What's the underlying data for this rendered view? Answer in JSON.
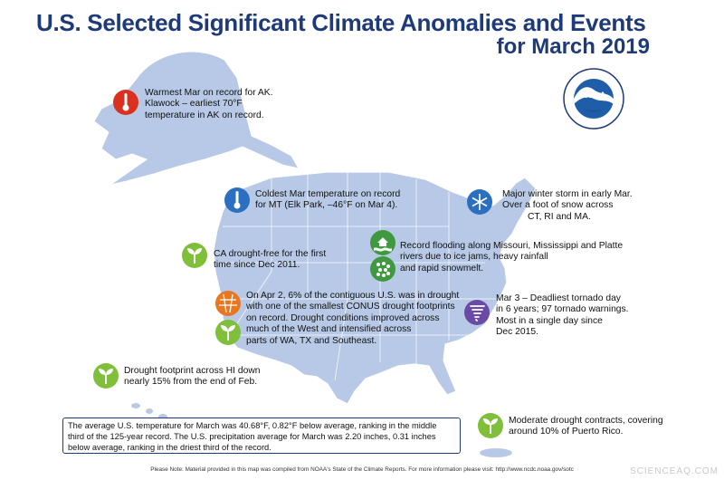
{
  "title": {
    "line1": "U.S. Selected Significant Climate Anomalies and Events",
    "line2": "for March 2019"
  },
  "logo": {
    "name": "NOAA",
    "icon": "noaa-logo-icon"
  },
  "colors": {
    "title": "#1f3a78",
    "land": "#b7c9e6",
    "drought_icon": "#7fbf3a",
    "heat_icon": "#d9301f",
    "cold_icon": "#2a6fc0",
    "tornado_icon": "#6a4aa5",
    "flood_icon": "#3f9a3f"
  },
  "events": {
    "alaska": {
      "line1": "Warmest Mar on record for AK.",
      "line2": "Klawock – earliest 70°F",
      "line3": "temperature in AK on record.",
      "icon": "thermometer-hot-icon"
    },
    "montana": {
      "line1": "Coldest Mar temperature on record",
      "line2": "for MT (Elk Park, –46°F on Mar 4).",
      "icon": "thermometer-cold-icon"
    },
    "winter_storm": {
      "line1": "Major winter storm in early Mar.",
      "line2": "Over a foot of snow across",
      "line3": "CT, RI and MA.",
      "icon": "snowflake-icon"
    },
    "flooding": {
      "line1": "Record flooding along Missouri, Mississippi and Platte",
      "line2": "rivers due to ice jams, heavy rainfall",
      "line3": "and rapid snowmelt.",
      "icon": "flood-icon",
      "icon2": "rain-icon"
    },
    "california": {
      "line1": "CA drought-free for the first",
      "line2": "time since Dec 2011.",
      "icon": "plant-icon"
    },
    "conus_drought": {
      "line1": "On Apr 2, 6% of the contiguous U.S. was in drought",
      "line2": "with one of the smallest CONUS drought footprints",
      "line3": "on record. Drought conditions improved across",
      "line4": "much of the West and intensified across",
      "line5": "parts of WA, TX and Southeast.",
      "icon": "drought-icon",
      "icon2": "plant-icon"
    },
    "tornado": {
      "line1": "Mar 3 – Deadliest tornado day",
      "line2": "in 6 years; 97 tornado warnings.",
      "line3": "Most in a single day since",
      "line4": "Dec 2015.",
      "icon": "tornado-icon"
    },
    "hawaii": {
      "line1": "Drought footprint across HI down",
      "line2": "nearly 15% from the end of Feb.",
      "icon": "plant-icon"
    },
    "puerto_rico": {
      "line1": "Moderate drought contracts, covering",
      "line2": "around 10% of Puerto Rico.",
      "icon": "plant-icon"
    }
  },
  "summary": {
    "line1": "The average U.S. temperature for March was 40.68°F, 0.82°F below average, ranking in the middle",
    "line2": "third of the 125-year record. The U.S. precipitation average for March was 2.20 inches, 0.31 inches",
    "line3": "below average, ranking  in the driest third of the record."
  },
  "footnote": "Please Note: Material provided in this map was compiled from NOAA's State of the Climate Reports. For more information please visit: http://www.ncdc.noaa.gov/sotc",
  "watermark": "SCIENCEAQ.COM"
}
